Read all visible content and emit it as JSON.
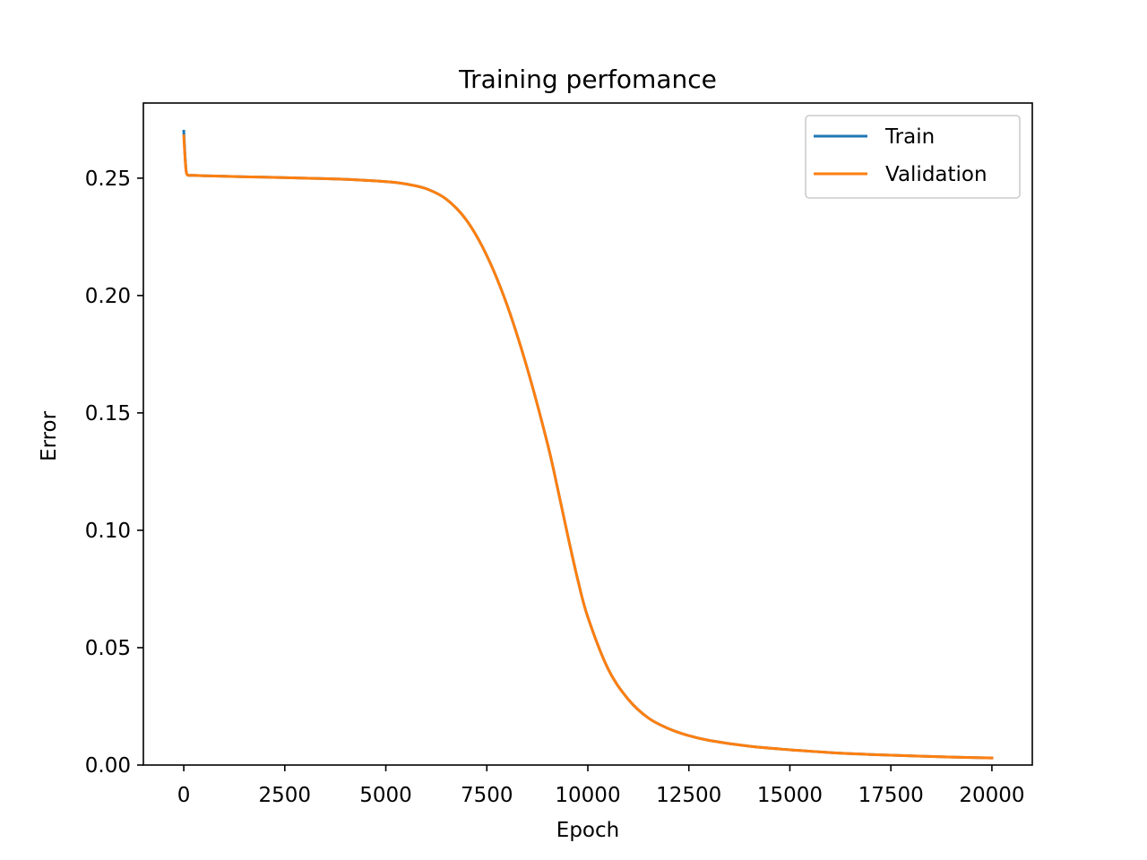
{
  "chart_data": {
    "type": "line",
    "title": "Training perfomance",
    "xlabel": "Epoch",
    "ylabel": "Error",
    "xlim": [
      -1000,
      21000
    ],
    "ylim": [
      0,
      0.282
    ],
    "xticks": [
      0,
      2500,
      5000,
      7500,
      10000,
      12500,
      15000,
      17500,
      20000
    ],
    "xtick_labels": [
      "0",
      "2500",
      "5000",
      "7500",
      "10000",
      "12500",
      "15000",
      "17500",
      "20000"
    ],
    "yticks": [
      0.0,
      0.05,
      0.1,
      0.15,
      0.2,
      0.25
    ],
    "ytick_labels": [
      "0.00",
      "0.05",
      "0.10",
      "0.15",
      "0.20",
      "0.25"
    ],
    "grid": false,
    "legend_position": "top-right",
    "series": [
      {
        "name": "Train",
        "color": "#1f77b4",
        "x": [
          0,
          30,
          60,
          100,
          200,
          500,
          1000,
          2000,
          3000,
          4000,
          5000,
          5500,
          6000,
          6500,
          7000,
          7500,
          8000,
          8500,
          9000,
          9250,
          9500,
          9750,
          10000,
          10500,
          11000,
          11500,
          12000,
          12500,
          13000,
          14000,
          15000,
          16000,
          17000,
          18000,
          19000,
          20000
        ],
        "y": [
          0.27,
          0.26,
          0.253,
          0.2513,
          0.2512,
          0.251,
          0.2508,
          0.2504,
          0.25,
          0.2495,
          0.2485,
          0.2475,
          0.2455,
          0.241,
          0.232,
          0.217,
          0.196,
          0.169,
          0.137,
          0.118,
          0.098,
          0.079,
          0.063,
          0.041,
          0.028,
          0.02,
          0.0155,
          0.0125,
          0.0105,
          0.008,
          0.0065,
          0.0053,
          0.0045,
          0.0039,
          0.0034,
          0.003
        ]
      },
      {
        "name": "Validation",
        "color": "#ff7f0e",
        "x": [
          0,
          30,
          60,
          100,
          200,
          500,
          1000,
          2000,
          3000,
          4000,
          5000,
          5500,
          6000,
          6500,
          7000,
          7500,
          8000,
          8500,
          9000,
          9250,
          9500,
          9750,
          10000,
          10500,
          11000,
          11500,
          12000,
          12500,
          13000,
          14000,
          15000,
          16000,
          17000,
          18000,
          19000,
          20000
        ],
        "y": [
          0.268,
          0.259,
          0.2528,
          0.2513,
          0.2512,
          0.251,
          0.2508,
          0.2504,
          0.25,
          0.2495,
          0.2485,
          0.2475,
          0.2455,
          0.241,
          0.232,
          0.217,
          0.196,
          0.169,
          0.137,
          0.118,
          0.098,
          0.079,
          0.063,
          0.041,
          0.028,
          0.02,
          0.0155,
          0.0125,
          0.0105,
          0.008,
          0.0065,
          0.0053,
          0.0045,
          0.0039,
          0.0034,
          0.003
        ]
      }
    ]
  }
}
